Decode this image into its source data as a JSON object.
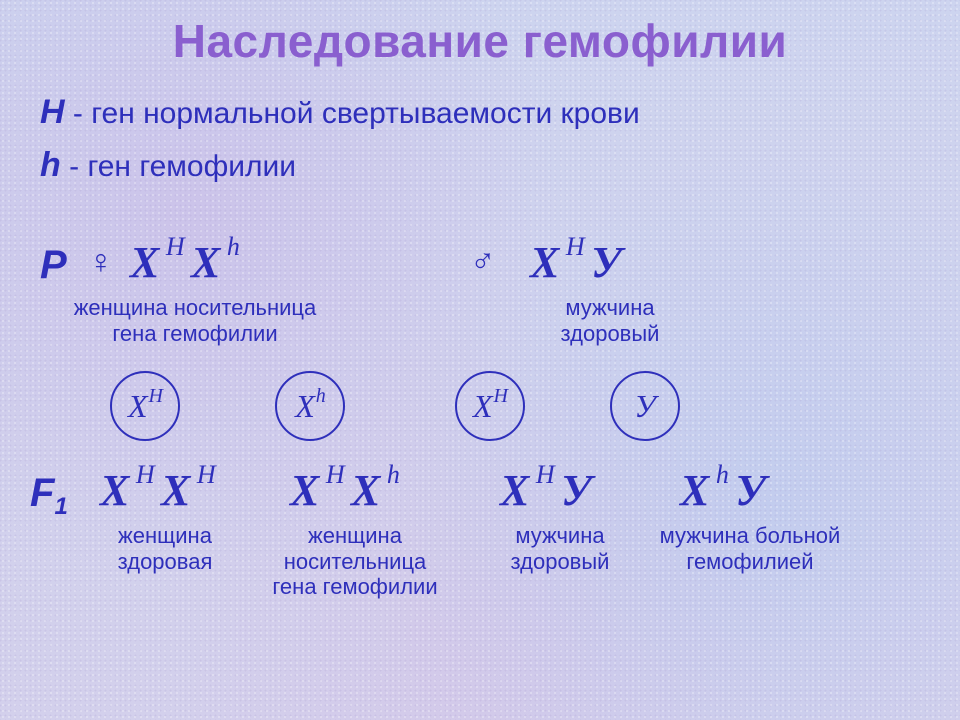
{
  "colors": {
    "title": "#8a5fcf",
    "text": "#2e2fbb",
    "circle_border": "#2e2fbb",
    "background_top": "#cdd4ef",
    "background_bottom": "#d3d0ec"
  },
  "title": "Наследование гемофилии",
  "legend": {
    "H_symbol": "H",
    "H_text": "- ген нормальной свертываемости крови",
    "h_symbol": "h",
    "h_text": "- ген гемофилии"
  },
  "symbols": {
    "female": "♀",
    "male": "♂"
  },
  "generations": {
    "P": "P",
    "F1_prefix": "F",
    "F1_sub": "1"
  },
  "parents": {
    "mother": {
      "genotype_parts": [
        "X",
        "H",
        "X",
        "h"
      ],
      "label": "женщина носительница\nгена гемофилии"
    },
    "father": {
      "genotype_parts": [
        "X",
        "H",
        "У"
      ],
      "label": "мужчина\nздоровый"
    }
  },
  "gametes": [
    {
      "base": "X",
      "sup": "H"
    },
    {
      "base": "X",
      "sup": "h"
    },
    {
      "base": "X",
      "sup": "H"
    },
    {
      "base": "У",
      "sup": ""
    }
  ],
  "offspring": [
    {
      "genotype_parts": [
        "X",
        "H",
        "X",
        "H"
      ],
      "label": "женщина\nздоровая"
    },
    {
      "genotype_parts": [
        "X",
        "H",
        "X",
        "h"
      ],
      "label": "женщина\nносительница\nгена гемофилии"
    },
    {
      "genotype_parts": [
        "X",
        "H",
        "У"
      ],
      "label": "мужчина\nздоровый"
    },
    {
      "genotype_parts": [
        "X",
        "h",
        "У"
      ],
      "label": "мужчина больной\nгемофилией"
    }
  ]
}
